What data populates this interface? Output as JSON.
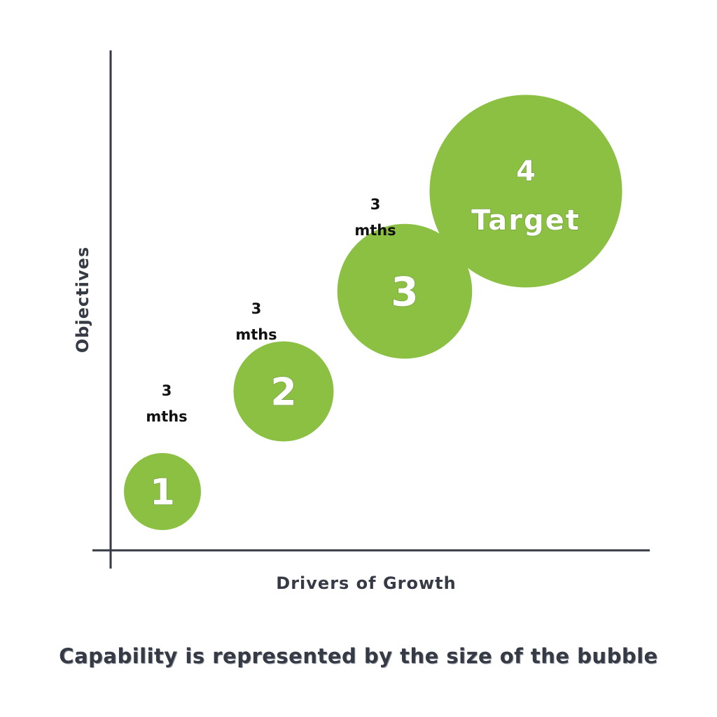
{
  "chart_data": {
    "type": "scatter",
    "xlabel": "Drivers of Growth",
    "ylabel": "Objectives",
    "bubbles": [
      {
        "label": "1",
        "sublabel": "",
        "x": 1,
        "y": 1,
        "size": 1.0
      },
      {
        "label": "2",
        "sublabel": "",
        "x": 2,
        "y": 2,
        "size": 1.3
      },
      {
        "label": "3",
        "sublabel": "",
        "x": 3,
        "y": 3,
        "size": 1.75
      },
      {
        "label": "4",
        "sublabel": "Target",
        "x": 4,
        "y": 4,
        "size": 2.5
      }
    ],
    "gap_labels": [
      {
        "line1": "3",
        "line2": "mths"
      },
      {
        "line1": "3",
        "line2": "mths"
      },
      {
        "line1": "3",
        "line2": "mths"
      }
    ],
    "colors": {
      "bubble": "#8bc043",
      "axis": "#353a45"
    },
    "grid": false
  },
  "caption": "Capability is represented by the size of the bubble"
}
